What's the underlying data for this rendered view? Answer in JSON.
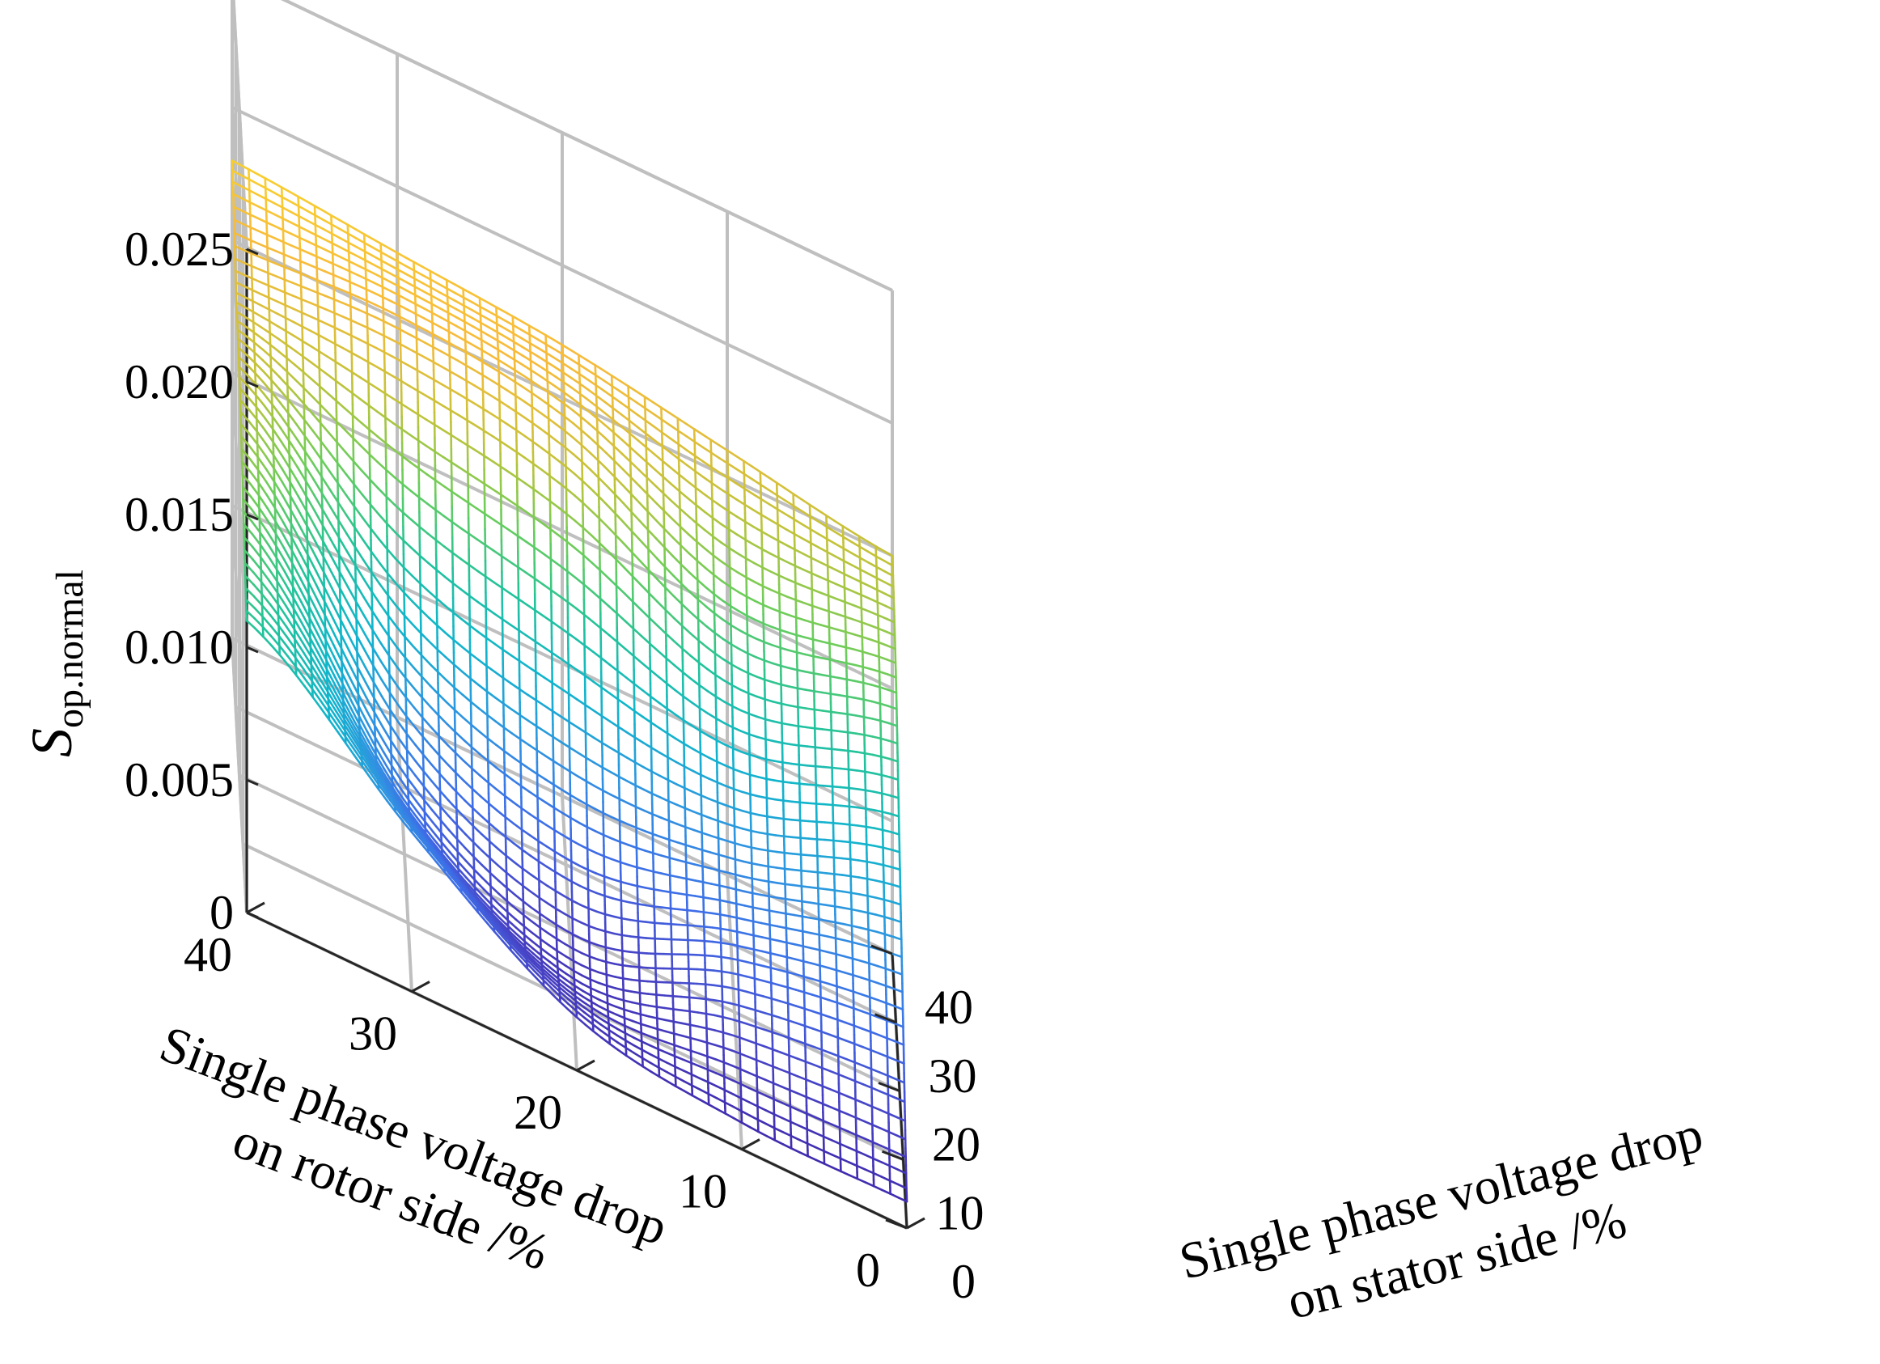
{
  "chart_data": {
    "type": "surface",
    "title": "",
    "zlabel_base": "S",
    "zlabel_sub": "op.normal",
    "xlabel_line1": "Single phase voltage drop",
    "xlabel_line2": "on stator side /%",
    "ylabel_line1": "Single phase voltage drop",
    "ylabel_line2": "on rotor side /%",
    "xlim": [
      0,
      40
    ],
    "ylim": [
      0,
      40
    ],
    "zlim": [
      0,
      0.025
    ],
    "x_ticks": [
      "0",
      "10",
      "20",
      "30",
      "40"
    ],
    "y_ticks": [
      "0",
      "10",
      "20",
      "30",
      "40"
    ],
    "z_ticks": [
      "0",
      "0.005",
      "0.010",
      "0.015",
      "0.020",
      "0.025"
    ],
    "grid": true,
    "colormap": [
      "#3e26a8",
      "#4743c6",
      "#3e6de8",
      "#2f94e1",
      "#11b5cc",
      "#23c39a",
      "#6ccd5a",
      "#c2c33a",
      "#f8bb3a",
      "#f9e024"
    ],
    "grid_x": [
      0,
      10,
      20,
      30,
      40
    ],
    "grid_y": [
      0,
      10,
      20,
      30,
      40
    ],
    "z_values": [
      [
        0.001,
        0.005,
        0.009,
        0.013,
        0.015
      ],
      [
        0.001,
        0.004,
        0.007,
        0.012,
        0.016
      ],
      [
        0.002,
        0.002,
        0.007,
        0.015,
        0.017
      ],
      [
        0.006,
        0.005,
        0.009,
        0.016,
        0.0175
      ],
      [
        0.011,
        0.013,
        0.015,
        0.016,
        0.018
      ]
    ]
  }
}
